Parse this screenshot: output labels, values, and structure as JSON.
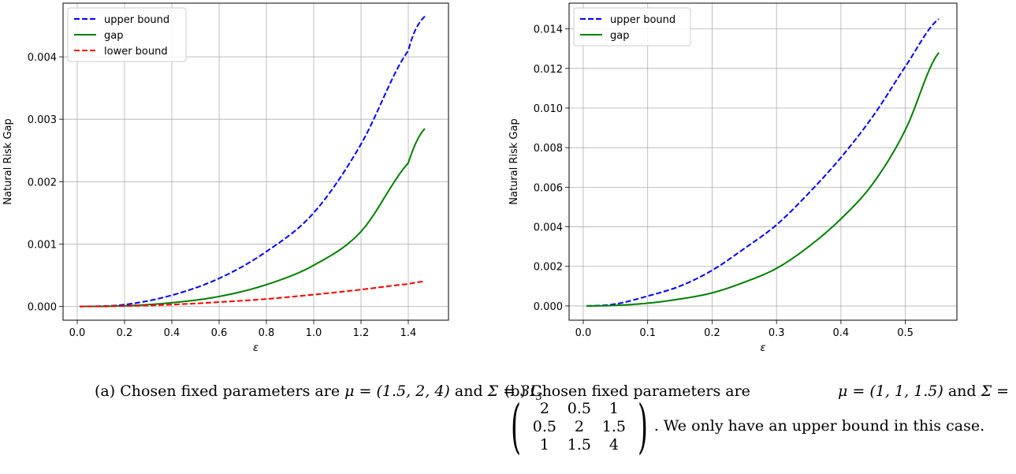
{
  "chart_data": [
    {
      "type": "line",
      "xlabel": "ε",
      "ylabel": "Natural Risk Gap",
      "xlim": [
        -0.06,
        1.57
      ],
      "ylim": [
        -0.00022,
        0.00486
      ],
      "x_ticks": [
        0.0,
        0.2,
        0.4,
        0.6,
        0.8,
        1.0,
        1.2,
        1.4
      ],
      "x_tick_labels": [
        "0.0",
        "0.2",
        "0.4",
        "0.6",
        "0.8",
        "1.0",
        "1.2",
        "1.4"
      ],
      "y_ticks": [
        0.0,
        0.001,
        0.002,
        0.003,
        0.004
      ],
      "y_tick_labels": [
        "0.000",
        "0.001",
        "0.002",
        "0.003",
        "0.004"
      ],
      "grid": true,
      "legend_position": "top-left",
      "series": [
        {
          "name": "upper bound",
          "color": "#0000ff",
          "style": "dashed",
          "x": [
            0.01,
            0.2,
            0.4,
            0.6,
            0.8,
            1.0,
            1.2,
            1.4,
            1.47
          ],
          "y": [
            0.0,
            3e-05,
            0.00018,
            0.00045,
            0.00088,
            0.0015,
            0.0026,
            0.0041,
            0.00465
          ]
        },
        {
          "name": "gap",
          "color": "#008000",
          "style": "solid",
          "x": [
            0.01,
            0.2,
            0.4,
            0.6,
            0.8,
            1.0,
            1.2,
            1.4,
            1.47
          ],
          "y": [
            0.0,
            1e-05,
            6e-05,
            0.00016,
            0.00035,
            0.00066,
            0.0012,
            0.0023,
            0.00285
          ]
        },
        {
          "name": "lower bound",
          "color": "#ff0000",
          "style": "dashed",
          "x": [
            0.01,
            0.2,
            0.4,
            0.6,
            0.8,
            1.0,
            1.2,
            1.4,
            1.47
          ],
          "y": [
            0.0,
            8e-06,
            3e-05,
            7e-05,
            0.00012,
            0.00019,
            0.00027,
            0.00036,
            0.0004
          ]
        }
      ]
    },
    {
      "type": "line",
      "xlabel": "ε",
      "ylabel": "Natural Risk Gap",
      "xlim": [
        -0.022,
        0.58
      ],
      "ylim": [
        -0.00072,
        0.0153
      ],
      "x_ticks": [
        0.0,
        0.1,
        0.2,
        0.3,
        0.4,
        0.5
      ],
      "x_tick_labels": [
        "0.0",
        "0.1",
        "0.2",
        "0.3",
        "0.4",
        "0.5"
      ],
      "y_ticks": [
        0.0,
        0.002,
        0.004,
        0.006,
        0.008,
        0.01,
        0.012,
        0.014
      ],
      "y_tick_labels": [
        "0.000",
        "0.002",
        "0.004",
        "0.006",
        "0.008",
        "0.010",
        "0.012",
        "0.014"
      ],
      "grid": true,
      "legend_position": "top-left",
      "series": [
        {
          "name": "upper bound",
          "color": "#0000ff",
          "style": "dashed",
          "x": [
            0.005,
            0.05,
            0.1,
            0.15,
            0.2,
            0.25,
            0.3,
            0.35,
            0.4,
            0.45,
            0.5,
            0.552
          ],
          "y": [
            0.0,
            0.0001,
            0.0005,
            0.001,
            0.0018,
            0.0029,
            0.0041,
            0.0057,
            0.0075,
            0.0096,
            0.0121,
            0.0145
          ]
        },
        {
          "name": "gap",
          "color": "#008000",
          "style": "solid",
          "x": [
            0.005,
            0.05,
            0.1,
            0.15,
            0.2,
            0.25,
            0.3,
            0.35,
            0.4,
            0.45,
            0.5,
            0.552
          ],
          "y": [
            0.0,
            3e-05,
            0.00014,
            0.00035,
            0.00066,
            0.0012,
            0.0019,
            0.003,
            0.0044,
            0.0062,
            0.0089,
            0.0128
          ]
        }
      ]
    }
  ],
  "captions": {
    "a": {
      "prefix": "(a) Chosen fixed parameters are ",
      "mu": "μ = (1.5, 2, 4)",
      "and": " and ",
      "sigma": "Σ = 3I",
      "sigma_sub": "3",
      "suffix": "."
    },
    "b": {
      "line1_prefix": "(b) Chosen fixed parameters are ",
      "mu": "μ = (1, 1, 1.5)",
      "and": " and ",
      "sigma": "Σ =",
      "matrix": [
        [
          "2",
          "0.5",
          "1"
        ],
        [
          "0.5",
          "2",
          "1.5"
        ],
        [
          "1",
          "1.5",
          "4"
        ]
      ],
      "suffix": ". We only have an upper bound in this case."
    }
  }
}
